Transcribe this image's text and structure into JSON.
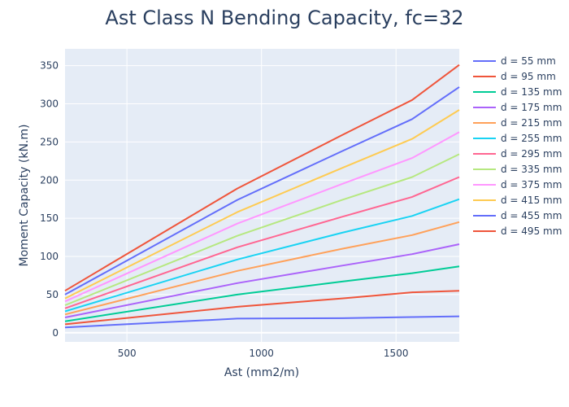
{
  "chart_data": {
    "type": "line",
    "title": "Ast Class N Bending Capacity, fc=32",
    "xlabel": "Ast (mm2/m)",
    "ylabel": "Moment Capacity (kN.m)",
    "xlim": [
      270,
      1735
    ],
    "ylim": [
      -12,
      372
    ],
    "xticks": [
      500,
      1000,
      1500
    ],
    "yticks": [
      0,
      50,
      100,
      150,
      200,
      250,
      300,
      350
    ],
    "grid": true,
    "legend_position": "right",
    "x": [
      270,
      910,
      1300,
      1560,
      1735
    ],
    "series": [
      {
        "name": "d = 55 mm",
        "color": "#636efa",
        "values": [
          7,
          18.5,
          19,
          20.5,
          21.5
        ]
      },
      {
        "name": "d = 95 mm",
        "color": "#ef553b",
        "values": [
          11,
          34,
          45,
          53,
          55
        ]
      },
      {
        "name": "d = 135 mm",
        "color": "#00cc96",
        "values": [
          15,
          50,
          67,
          78,
          87
        ]
      },
      {
        "name": "d = 175 mm",
        "color": "#ab63fa",
        "values": [
          20,
          65,
          88,
          103,
          116
        ]
      },
      {
        "name": "d = 215 mm",
        "color": "#ffa15a",
        "values": [
          24,
          81,
          110,
          128,
          145
        ]
      },
      {
        "name": "d = 255 mm",
        "color": "#19d3f3",
        "values": [
          28,
          96,
          131,
          153,
          175
        ]
      },
      {
        "name": "d = 295 mm",
        "color": "#ff6692",
        "values": [
          32,
          112,
          152,
          178,
          204
        ]
      },
      {
        "name": "d = 335 mm",
        "color": "#b6e880",
        "values": [
          36,
          127,
          174,
          204,
          234
        ]
      },
      {
        "name": "d = 375 mm",
        "color": "#ff97ff",
        "values": [
          41,
          143,
          195,
          229,
          263
        ]
      },
      {
        "name": "d = 415 mm",
        "color": "#fecb52",
        "values": [
          45,
          158,
          216,
          254,
          292
        ]
      },
      {
        "name": "d = 455 mm",
        "color": "#636efa",
        "values": [
          50,
          174,
          238,
          280,
          322
        ]
      },
      {
        "name": "d = 495 mm",
        "color": "#ef553b",
        "values": [
          55,
          189,
          259,
          305,
          351
        ]
      }
    ]
  }
}
